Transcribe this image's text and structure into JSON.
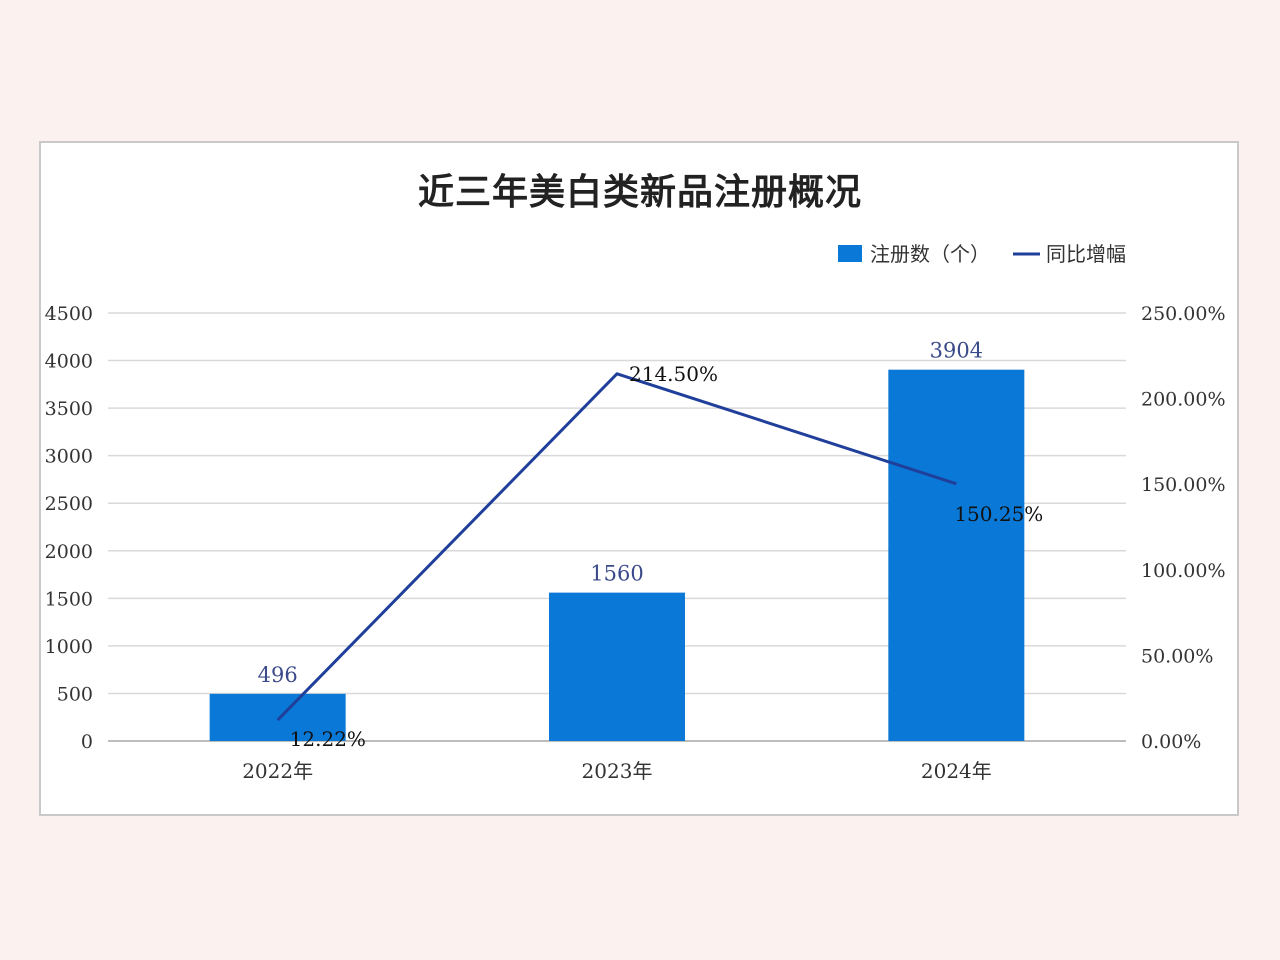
{
  "chart_data": {
    "type": "bar",
    "title": "近三年美白类新品注册概况",
    "categories": [
      "2022年",
      "2023年",
      "2024年"
    ],
    "series": [
      {
        "name": "注册数（个）",
        "kind": "bar",
        "axis": "left",
        "color": "#0a78d6",
        "values": [
          496,
          1560,
          3904
        ],
        "labels": [
          "496",
          "1560",
          "3904"
        ]
      },
      {
        "name": "同比增幅",
        "kind": "line",
        "axis": "right",
        "color": "#1f3f9a",
        "values": [
          12.22,
          214.5,
          150.25
        ],
        "labels": [
          "12.22%",
          "214.50%",
          "150.25%"
        ]
      }
    ],
    "y_left": {
      "ylim": [
        0,
        4500
      ],
      "ticks": [
        "0",
        "500",
        "1000",
        "1500",
        "2000",
        "2500",
        "3000",
        "3500",
        "4000",
        "4500"
      ]
    },
    "y_right": {
      "ylim": [
        0,
        250
      ],
      "ticks": [
        "0.00%",
        "50.00%",
        "100.00%",
        "150.00%",
        "200.00%",
        "250.00%"
      ]
    },
    "grid": true,
    "legend": "top-right"
  }
}
